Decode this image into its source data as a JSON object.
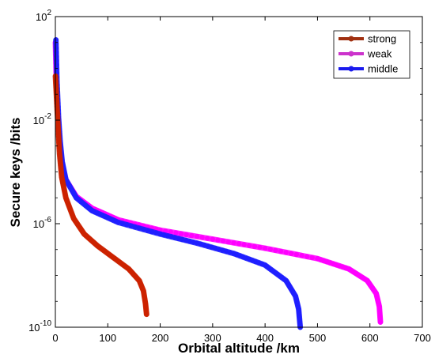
{
  "chart_data": {
    "type": "line",
    "title": "",
    "xlabel": "Orbital altitude /km",
    "ylabel": "Secure keys /bits",
    "xlim": [
      0,
      700
    ],
    "ylim_log10": [
      -10,
      2
    ],
    "y_scale": "log",
    "grid": false,
    "legend_position": "top-right",
    "x_ticks": [
      {
        "value": 0,
        "label": "0"
      },
      {
        "value": 100,
        "label": "100"
      },
      {
        "value": 200,
        "label": "200"
      },
      {
        "value": 300,
        "label": "300"
      },
      {
        "value": 400,
        "label": "400"
      },
      {
        "value": 500,
        "label": "500"
      },
      {
        "value": 600,
        "label": "600"
      },
      {
        "value": 700,
        "label": "700"
      }
    ],
    "y_ticks": [
      {
        "exp": 2,
        "base": "10",
        "sup": "2"
      },
      {
        "exp": -2,
        "base": "10",
        "sup": "-2"
      },
      {
        "exp": -6,
        "base": "10",
        "sup": "-6"
      },
      {
        "exp": -10,
        "base": "10",
        "sup": "-10"
      }
    ],
    "series": [
      {
        "name": "strong",
        "color": "#cc2200",
        "legend_color": "#a03010",
        "points": [
          [
            0.2,
            -0.3
          ],
          [
            2,
            -1.0
          ],
          [
            5,
            -2.2
          ],
          [
            8,
            -3.3
          ],
          [
            12,
            -4.2
          ],
          [
            20,
            -5.0
          ],
          [
            35,
            -5.8
          ],
          [
            55,
            -6.4
          ],
          [
            80,
            -6.85
          ],
          [
            110,
            -7.3
          ],
          [
            140,
            -7.75
          ],
          [
            160,
            -8.2
          ],
          [
            168,
            -8.6
          ],
          [
            172,
            -9.1
          ],
          [
            174,
            -9.5
          ]
        ]
      },
      {
        "name": "weak",
        "color": "#ff00ff",
        "legend_color": "#cc33cc",
        "points": [
          [
            0.2,
            1.0
          ],
          [
            2,
            -0.6
          ],
          [
            5,
            -1.9
          ],
          [
            8,
            -2.8
          ],
          [
            12,
            -3.6
          ],
          [
            20,
            -4.3
          ],
          [
            40,
            -4.95
          ],
          [
            70,
            -5.4
          ],
          [
            120,
            -5.85
          ],
          [
            200,
            -6.25
          ],
          [
            300,
            -6.6
          ],
          [
            400,
            -6.95
          ],
          [
            500,
            -7.35
          ],
          [
            560,
            -7.75
          ],
          [
            595,
            -8.2
          ],
          [
            612,
            -8.7
          ],
          [
            618,
            -9.2
          ],
          [
            620,
            -9.8
          ]
        ]
      },
      {
        "name": "middle",
        "color": "#1f1fff",
        "legend_color": "#1a1aee",
        "points": [
          [
            1,
            1.1
          ],
          [
            3,
            -0.5
          ],
          [
            6,
            -1.9
          ],
          [
            9,
            -2.8
          ],
          [
            13,
            -3.6
          ],
          [
            20,
            -4.3
          ],
          [
            40,
            -5.0
          ],
          [
            70,
            -5.5
          ],
          [
            120,
            -5.95
          ],
          [
            200,
            -6.4
          ],
          [
            270,
            -6.75
          ],
          [
            340,
            -7.15
          ],
          [
            400,
            -7.6
          ],
          [
            440,
            -8.2
          ],
          [
            458,
            -8.8
          ],
          [
            464,
            -9.3
          ],
          [
            467,
            -10.0
          ]
        ]
      }
    ]
  }
}
